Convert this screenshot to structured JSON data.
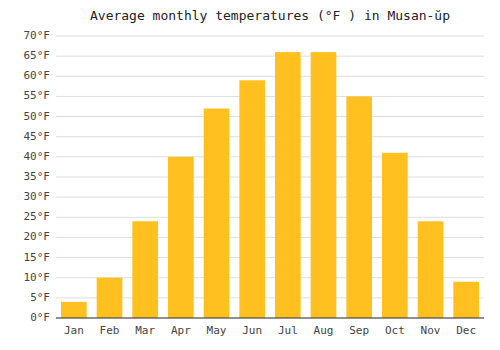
{
  "chart_data": {
    "type": "bar",
    "title": "Average monthly temperatures (°F ) in Musan-ŭp",
    "categories": [
      "Jan",
      "Feb",
      "Mar",
      "Apr",
      "May",
      "Jun",
      "Jul",
      "Aug",
      "Sep",
      "Oct",
      "Nov",
      "Dec"
    ],
    "values": [
      4,
      10,
      24,
      40,
      52,
      59,
      66,
      66,
      55,
      41,
      24,
      9
    ],
    "color": "#FFC020",
    "ylim": [
      0,
      70
    ],
    "yticks": [
      {
        "value": 0,
        "label": "0°F"
      },
      {
        "value": 5,
        "label": "5°F"
      },
      {
        "value": 10,
        "label": "10°F"
      },
      {
        "value": 15,
        "label": "15°F"
      },
      {
        "value": 20,
        "label": "20°F"
      },
      {
        "value": 25,
        "label": "25°F"
      },
      {
        "value": 30,
        "label": "30°F"
      },
      {
        "value": 35,
        "label": "35°F"
      },
      {
        "value": 40,
        "label": "40°F"
      },
      {
        "value": 45,
        "label": "45°F"
      },
      {
        "value": 50,
        "label": "50°F"
      },
      {
        "value": 55,
        "label": "55°F"
      },
      {
        "value": 60,
        "label": "60°F"
      },
      {
        "value": 65,
        "label": "65°F"
      },
      {
        "value": 70,
        "label": "70°F"
      }
    ],
    "grid": true
  }
}
